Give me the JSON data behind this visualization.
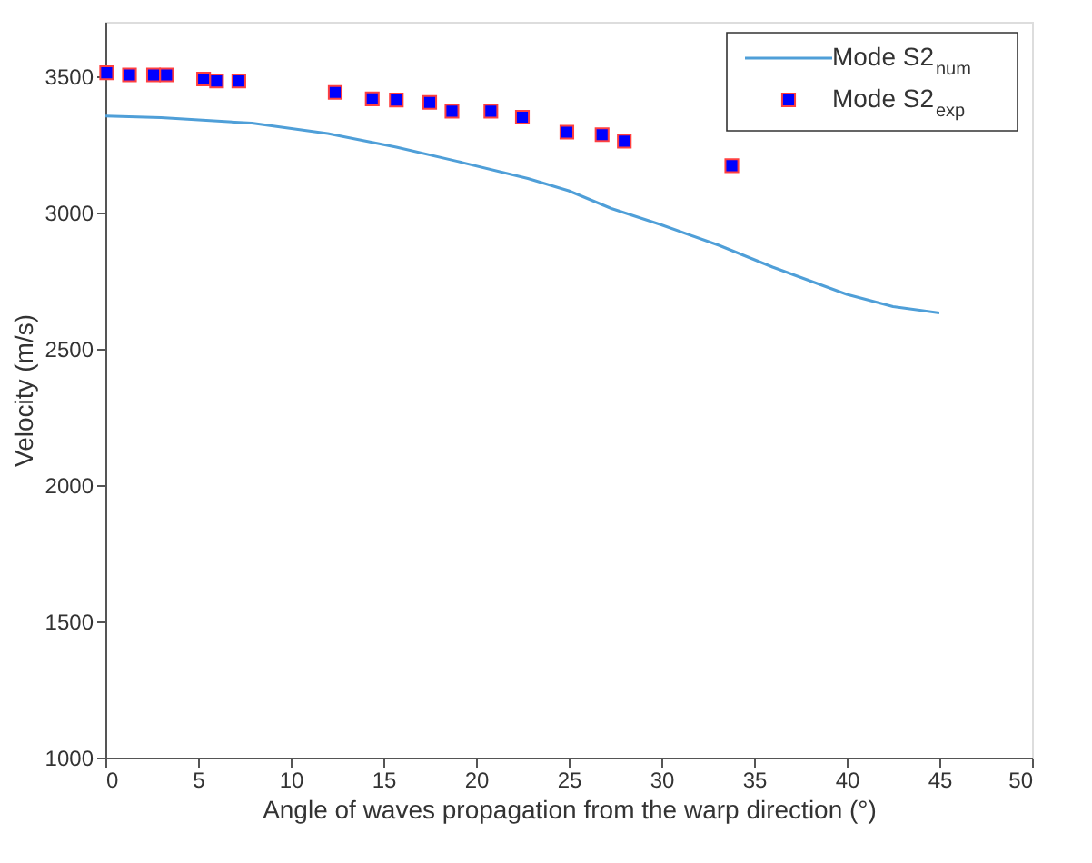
{
  "chart_data": {
    "type": "line",
    "xlabel": "Angle of waves propagation from the warp direction (°)",
    "ylabel": "Velocity (m/s)",
    "xlim": [
      0,
      50
    ],
    "xticks": [
      0,
      5,
      10,
      15,
      20,
      25,
      30,
      35,
      40,
      45,
      50
    ],
    "ylim": [
      1000,
      3700
    ],
    "yticks": [
      1000,
      1500,
      2000,
      2500,
      3000,
      3500
    ],
    "grid": false,
    "legend": "top right",
    "series": [
      {
        "name": "Mode S2$_{num}$",
        "color": "#4f9fd8",
        "marker": "none",
        "line_style": "solid",
        "x": [
          0,
          3,
          7.9,
          12,
          15.7,
          19,
          22.8,
          25,
          27.3,
          30,
          33.1,
          36,
          38,
          40,
          42.5,
          45
        ],
        "values": [
          3354,
          3348,
          3328,
          3290,
          3240,
          3188,
          3125,
          3080,
          3015,
          2955,
          2880,
          2800,
          2750,
          2700,
          2655,
          2632
        ]
      },
      {
        "name": "Mode S2$_{exp}$",
        "type": "scatter",
        "color": "#0000ff",
        "marker": "square",
        "x": [
          0.07,
          1.3,
          2.6,
          3.3,
          5.3,
          6.0,
          7.2,
          12.4,
          14.4,
          15.7,
          17.5,
          18.7,
          20.8,
          22.5,
          24.9,
          26.8,
          28.0,
          33.8
        ],
        "values": [
          3513,
          3505,
          3505,
          3505,
          3490,
          3483,
          3483,
          3441,
          3417,
          3413,
          3404,
          3372,
          3372,
          3350,
          3295,
          3286,
          3262,
          3172
        ]
      }
    ]
  }
}
